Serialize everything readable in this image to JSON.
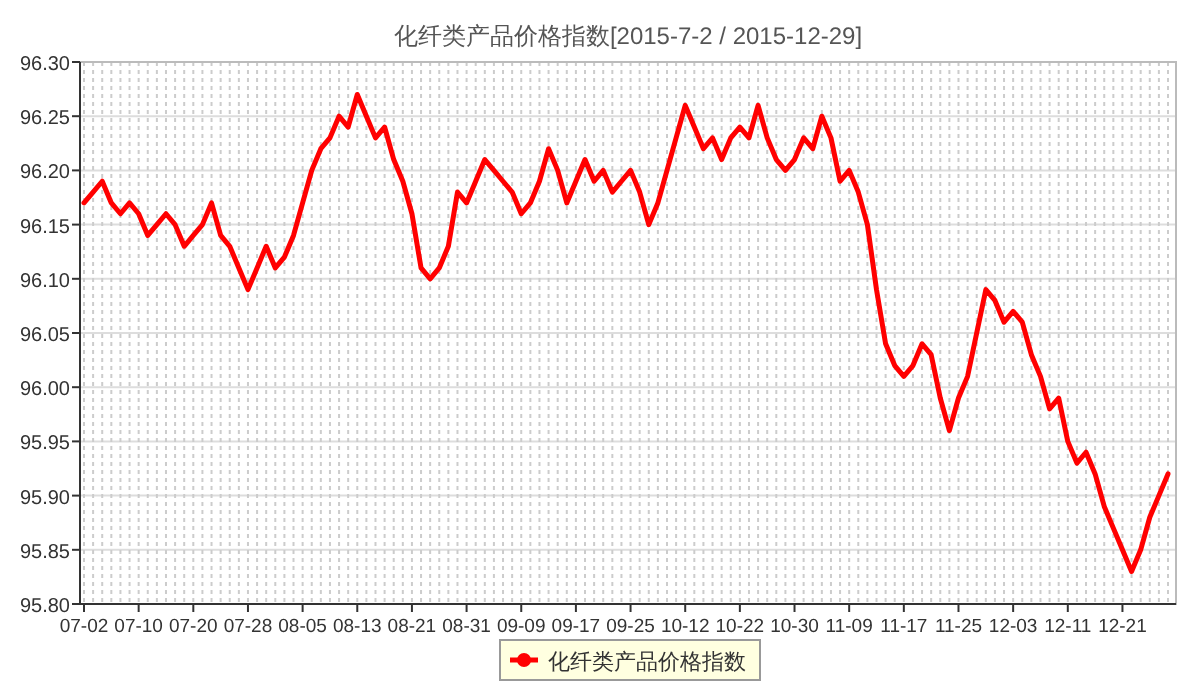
{
  "chart_data": {
    "type": "line",
    "title": "化纤类产品价格指数[2015-7-2 / 2015-12-29]",
    "categories": [
      "07-02",
      null,
      null,
      null,
      null,
      null,
      "07-10",
      null,
      null,
      null,
      null,
      null,
      "07-20",
      null,
      null,
      null,
      null,
      null,
      "07-28",
      null,
      null,
      null,
      null,
      null,
      "08-05",
      null,
      null,
      null,
      null,
      null,
      "08-13",
      null,
      null,
      null,
      null,
      null,
      "08-21",
      null,
      null,
      null,
      null,
      null,
      "08-31",
      null,
      null,
      null,
      null,
      null,
      "09-09",
      null,
      null,
      null,
      null,
      null,
      "09-17",
      null,
      null,
      null,
      null,
      null,
      "09-25",
      null,
      null,
      null,
      null,
      null,
      "10-12",
      null,
      null,
      null,
      null,
      null,
      "10-22",
      null,
      null,
      null,
      null,
      null,
      "10-30",
      null,
      null,
      null,
      null,
      null,
      "11-09",
      null,
      null,
      null,
      null,
      null,
      "11-17",
      null,
      null,
      null,
      null,
      null,
      "11-25",
      null,
      null,
      null,
      null,
      null,
      "12-03",
      null,
      null,
      null,
      null,
      null,
      "12-11",
      null,
      null,
      null,
      null,
      null,
      "12-21",
      null,
      null,
      null,
      null,
      null
    ],
    "series": [
      {
        "name": "化纤类产品价格指数",
        "color": "#ff0000",
        "values": [
          96.17,
          96.18,
          96.19,
          96.17,
          96.16,
          96.17,
          96.16,
          96.14,
          96.15,
          96.16,
          96.15,
          96.13,
          96.14,
          96.15,
          96.17,
          96.14,
          96.13,
          96.11,
          96.09,
          96.11,
          96.13,
          96.11,
          96.12,
          96.14,
          96.17,
          96.2,
          96.22,
          96.23,
          96.25,
          96.24,
          96.27,
          96.25,
          96.23,
          96.24,
          96.21,
          96.19,
          96.16,
          96.11,
          96.1,
          96.11,
          96.13,
          96.18,
          96.17,
          96.19,
          96.21,
          96.2,
          96.19,
          96.18,
          96.16,
          96.17,
          96.19,
          96.22,
          96.2,
          96.17,
          96.19,
          96.21,
          96.19,
          96.2,
          96.18,
          96.19,
          96.2,
          96.18,
          96.15,
          96.17,
          96.2,
          96.23,
          96.26,
          96.24,
          96.22,
          96.23,
          96.21,
          96.23,
          96.24,
          96.23,
          96.26,
          96.23,
          96.21,
          96.2,
          96.21,
          96.23,
          96.22,
          96.25,
          96.23,
          96.19,
          96.2,
          96.18,
          96.15,
          96.09,
          96.04,
          96.02,
          96.01,
          96.02,
          96.04,
          96.03,
          95.99,
          95.96,
          95.99,
          96.01,
          96.05,
          96.09,
          96.08,
          96.06,
          96.07,
          96.06,
          96.03,
          96.01,
          95.98,
          95.99,
          95.95,
          95.93,
          95.94,
          95.92,
          95.89,
          95.87,
          95.85,
          95.83,
          95.85,
          95.88,
          95.9,
          95.92
        ]
      }
    ],
    "ylim": [
      95.8,
      96.3
    ],
    "yticks": [
      {
        "value": 95.8,
        "label": "95.80"
      },
      {
        "value": 95.85,
        "label": "95.85"
      },
      {
        "value": 95.9,
        "label": "95.90"
      },
      {
        "value": 95.95,
        "label": "95.95"
      },
      {
        "value": 96,
        "label": "96.00"
      },
      {
        "value": 96.05,
        "label": "96.05"
      },
      {
        "value": 96.1,
        "label": "96.10"
      },
      {
        "value": 96.15,
        "label": "96.15"
      },
      {
        "value": 96.2,
        "label": "96.20"
      },
      {
        "value": 96.25,
        "label": "96.25"
      },
      {
        "value": 96.3,
        "label": "96.30"
      }
    ],
    "grid": true,
    "legend": "bottom",
    "marker": "none",
    "line_style": "solid"
  }
}
